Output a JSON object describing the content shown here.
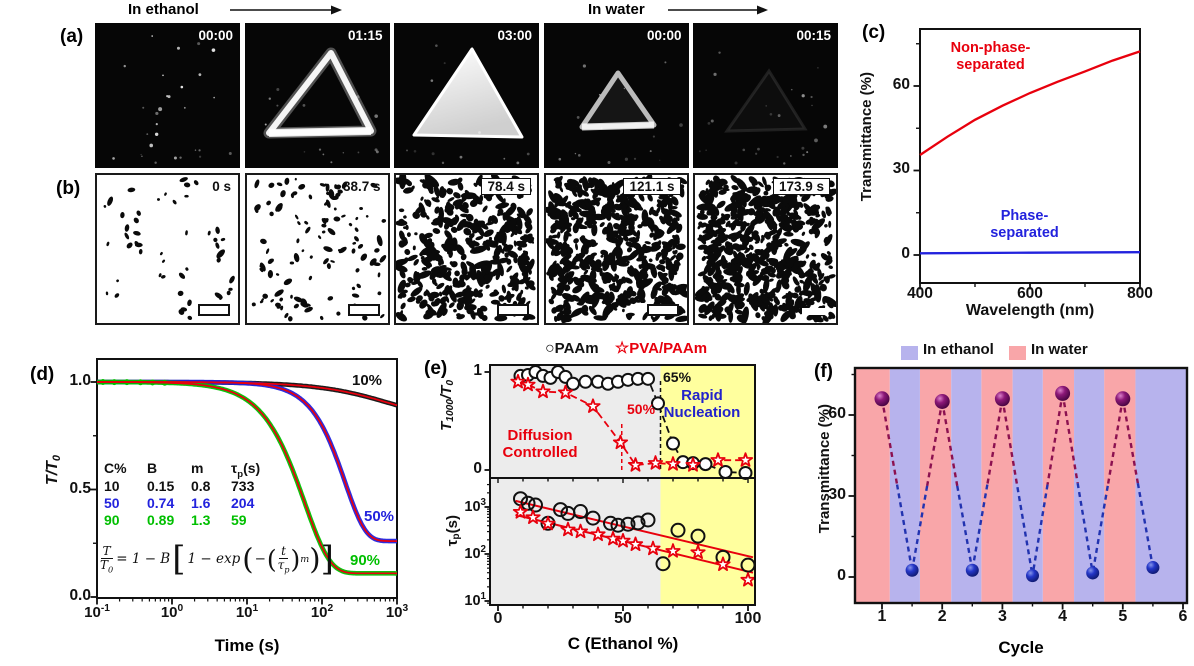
{
  "figure": {
    "top_arrows": [
      {
        "label": "In ethanol"
      },
      {
        "label": "In water"
      }
    ],
    "panel_labels": {
      "a": "(a)",
      "b": "(b)",
      "c": "(c)",
      "d": "(d)",
      "e": "(e)",
      "f": "(f)"
    }
  },
  "panel_a": {
    "frames": [
      {
        "timestamp": "00:00",
        "content": "sparse-dots"
      },
      {
        "timestamp": "01:15",
        "content": "triangle-outline"
      },
      {
        "timestamp": "03:00",
        "content": "triangle-filled"
      },
      {
        "timestamp": "00:00",
        "content": "triangle-outline-dim"
      },
      {
        "timestamp": "00:15",
        "content": "faint-dots"
      }
    ]
  },
  "panel_b": {
    "frames": [
      {
        "timestamp": "0 s",
        "dot_count": 48,
        "boxed_label": false
      },
      {
        "timestamp": "38.7 s",
        "dot_count": 115,
        "boxed_label": false
      },
      {
        "timestamp": "78.4 s",
        "dot_count": 400,
        "boxed_label": true
      },
      {
        "timestamp": "121.1 s",
        "dot_count": 540,
        "boxed_label": true
      },
      {
        "timestamp": "173.9 s",
        "dot_count": 580,
        "boxed_label": true
      }
    ]
  },
  "panel_c": {
    "ylabel": "Transmittance (%)",
    "xlabel": "Wavelength (nm)",
    "yticks": [
      "0",
      "30",
      "60"
    ],
    "xticks": [
      "400",
      "600",
      "800"
    ],
    "red_label_lines": [
      "Non-phase-",
      "separated"
    ],
    "blue_label_lines": [
      "Phase-",
      "separated"
    ]
  },
  "panel_d": {
    "ylabel": "T/T_{0}",
    "xlabel": "Time (s)",
    "yticks": [
      "0.0",
      "0.5",
      "1.0"
    ],
    "xticks": [
      "10^{-1}",
      "10^{0}",
      "10^{1}",
      "10^{2}",
      "10^{3}"
    ],
    "series_labels": [
      {
        "text": "10%",
        "color": "#111111"
      },
      {
        "text": "50%",
        "color": "#2222dd"
      },
      {
        "text": "90%",
        "color": "#00bf00"
      }
    ],
    "table": {
      "headers": [
        "C%",
        "B",
        "m",
        "τ_{p}(s)"
      ],
      "rows": [
        {
          "cells": [
            "10",
            "0.15",
            "0.8",
            "733"
          ],
          "color": "#111111"
        },
        {
          "cells": [
            "50",
            "0.74",
            "1.6",
            "204"
          ],
          "color": "#2222dd"
        },
        {
          "cells": [
            "90",
            "0.89",
            "1.3",
            "59"
          ],
          "color": "#00bf00"
        }
      ]
    },
    "equation": {
      "lhs_num": "T",
      "lhs_den": "T_{0}",
      "rhs_pre": "= 1 − B",
      "lb": "[",
      "inner_pre": "1 − exp",
      "lp": "(",
      "minus": "−",
      "ip": "(",
      "frac_num": "t",
      "frac_den": "τ_{p}",
      "cp": ")",
      "exponent": "m",
      "rp": ")",
      "rb": "]"
    }
  },
  "panel_e": {
    "legend": [
      {
        "glyph": "○",
        "text": "PAAm",
        "color": "#111111"
      },
      {
        "glyph": "☆",
        "text": "PVA/PAAm",
        "color": "#e8000d"
      }
    ],
    "top": {
      "ylabel": "T_{1000}/T_{0}",
      "yticks": [
        "0",
        "1"
      ],
      "annotations": {
        "line65": "65%",
        "line50": "50%",
        "diffusion": [
          "Diffusion",
          "Controlled"
        ],
        "rapid": [
          "Rapid",
          "Nucleation"
        ]
      }
    },
    "bottom": {
      "ylabel": "τ_{p}(s)",
      "yticks": [
        "10^{1}",
        "10^{2}",
        "10^{3}"
      ]
    },
    "xlabel": "C (Ethanol %)",
    "xticks": [
      "0",
      "50",
      "100"
    ]
  },
  "panel_f": {
    "legend": [
      {
        "text": "In ethanol",
        "color": "#b7b3ed"
      },
      {
        "text": "In water",
        "color": "#f9a6a9"
      }
    ],
    "ylabel": "Transmittance (%)",
    "xlabel": "Cycle",
    "yticks": [
      "0",
      "30",
      "60"
    ],
    "xticks": [
      "1",
      "2",
      "3",
      "4",
      "5",
      "6"
    ]
  },
  "colors": {
    "red": "#e8000d",
    "blue": "#2222dd",
    "green": "#00bf00",
    "black": "#111111",
    "gray_region": "#ececec",
    "yellow_region": "#ffff9e",
    "pink_band": "#f9a6a9",
    "lavender_band": "#b7b3ed",
    "maroon_sphere": "#6b0f5e",
    "navy_sphere": "#2233b0"
  },
  "chart_data": [
    {
      "id": "c",
      "type": "line",
      "xlabel": "Wavelength (nm)",
      "ylabel": "Transmittance (%)",
      "xlim": [
        400,
        800
      ],
      "ylim": [
        -8,
        78
      ],
      "xticks": [
        400,
        600,
        800
      ],
      "yticks": [
        0,
        30,
        60
      ],
      "series": [
        {
          "name": "Non-phase-separated",
          "color": "#e8000d",
          "x": [
            400,
            450,
            500,
            550,
            600,
            650,
            700,
            750,
            800
          ],
          "y": [
            35.5,
            42,
            48,
            53,
            57.5,
            61.5,
            65.2,
            69,
            72.3
          ]
        },
        {
          "name": "Phase-separated",
          "color": "#2222dd",
          "x": [
            400,
            600,
            800
          ],
          "y": [
            0.6,
            0.8,
            1.0
          ]
        }
      ]
    },
    {
      "id": "d",
      "type": "line",
      "xscale": "log",
      "xlabel": "Time (s)",
      "ylabel": "T/T0",
      "xlim": [
        0.1,
        1000
      ],
      "ylim": [
        0.0,
        1.05
      ],
      "model": "T/T0 = 1 - B*[1 - exp(-(t/tau_p)^m)]",
      "series": [
        {
          "name": "10%",
          "color": "#111111",
          "B": 0.15,
          "m": 0.8,
          "tau_p": 733
        },
        {
          "name": "50%",
          "color": "#2222dd",
          "B": 0.74,
          "m": 1.6,
          "tau_p": 204
        },
        {
          "name": "90%",
          "color": "#00bf00",
          "B": 0.89,
          "m": 1.3,
          "tau_p": 59
        }
      ]
    },
    {
      "id": "e-top",
      "type": "scatter",
      "xlabel": "C (Ethanol %)",
      "ylabel": "T1000/T0",
      "xlim": [
        -3,
        103
      ],
      "ylim": [
        -0.08,
        1.07
      ],
      "xticks": [
        0,
        50,
        100
      ],
      "yticks": [
        0,
        1
      ],
      "regions": [
        {
          "label": "Diffusion Controlled",
          "x": [
            -3,
            65
          ],
          "color": "#ececec"
        },
        {
          "label": "Rapid Nucleation",
          "x": [
            65,
            103
          ],
          "color": "#ffff9e"
        }
      ],
      "vlines": [
        {
          "x": 49.5,
          "label": "50%",
          "color": "#e8000d"
        },
        {
          "x": 65,
          "label": "65%",
          "color": "#111111"
        }
      ],
      "series": [
        {
          "name": "PAAm",
          "marker": "circle",
          "color": "#111111",
          "x": [
            9,
            12,
            15,
            18,
            21,
            24,
            27,
            30,
            35,
            40,
            44,
            48,
            52,
            56,
            60,
            64,
            70,
            74,
            78,
            83,
            91,
            99
          ],
          "y": [
            0.96,
            0.97,
            1.0,
            0.96,
            0.94,
            1.0,
            0.95,
            0.88,
            0.9,
            0.9,
            0.88,
            0.9,
            0.92,
            0.93,
            0.93,
            0.68,
            0.27,
            0.08,
            0.07,
            0.06,
            -0.02,
            -0.03
          ]
        },
        {
          "name": "PVA/PAAm",
          "marker": "star",
          "color": "#e8000d",
          "x": [
            8,
            12,
            18,
            27,
            38,
            49,
            55,
            63,
            70,
            78,
            88,
            99
          ],
          "y": [
            0.9,
            0.87,
            0.8,
            0.79,
            0.65,
            0.28,
            0.05,
            0.07,
            0.06,
            0.05,
            0.1,
            0.1
          ]
        }
      ]
    },
    {
      "id": "e-bottom",
      "type": "scatter",
      "yscale": "log",
      "xlabel": "C (Ethanol %)",
      "ylabel": "tau_p (s)",
      "xlim": [
        -3,
        103
      ],
      "ylim": [
        8,
        4200
      ],
      "xticks": [
        0,
        50,
        100
      ],
      "yticks": [
        10,
        100,
        1000
      ],
      "series": [
        {
          "name": "PAAm",
          "marker": "circle",
          "color": "#111111",
          "x": [
            9,
            12,
            15,
            20,
            25,
            28,
            33,
            38,
            45,
            48,
            52,
            56,
            60,
            66,
            72,
            80,
            90,
            100
          ],
          "y": [
            1500,
            1200,
            1100,
            450,
            880,
            730,
            800,
            580,
            450,
            410,
            430,
            460,
            530,
            62,
            320,
            240,
            85,
            58
          ]
        },
        {
          "name": "PVA/PAAm",
          "marker": "star",
          "color": "#e8000d",
          "x": [
            9,
            14,
            20,
            28,
            33,
            40,
            46,
            50,
            55,
            62,
            70,
            80,
            90,
            100
          ],
          "y": [
            780,
            600,
            440,
            330,
            300,
            260,
            210,
            190,
            160,
            130,
            115,
            108,
            60,
            28
          ]
        }
      ],
      "fit_lines": [
        {
          "name": "PAAm fit",
          "color": "#e8000d",
          "x": [
            7,
            102
          ],
          "y": [
            1350,
            85
          ]
        },
        {
          "name": "PVA/PAAm fit",
          "color": "#e8000d",
          "x": [
            7,
            102
          ],
          "y": [
            680,
            40
          ]
        }
      ]
    },
    {
      "id": "f",
      "type": "scatter",
      "xlabel": "Cycle",
      "ylabel": "Transmittance (%)",
      "xlim": [
        0.55,
        6.07
      ],
      "ylim": [
        -9,
        77
      ],
      "xticks": [
        1,
        2,
        3,
        4,
        5,
        6
      ],
      "yticks": [
        0,
        30,
        60
      ],
      "bands": {
        "in_water_pink": [
          [
            0.55,
            1.13
          ],
          [
            1.63,
            2.15
          ],
          [
            2.65,
            3.17
          ],
          [
            3.67,
            4.19
          ],
          [
            4.69,
            5.21
          ]
        ],
        "in_ethanol_blue": [
          [
            1.13,
            1.63
          ],
          [
            2.15,
            2.65
          ],
          [
            3.17,
            3.67
          ],
          [
            4.19,
            4.69
          ],
          [
            5.21,
            6.07
          ]
        ]
      },
      "series": [
        {
          "name": "in water (high T)",
          "color": "#6b0f5e",
          "x": [
            1,
            2,
            3,
            4,
            5
          ],
          "y": [
            66,
            65,
            66,
            68,
            66
          ]
        },
        {
          "name": "in ethanol (low T)",
          "color": "#2233b0",
          "x": [
            1.5,
            2.5,
            3.5,
            4.5,
            5.5
          ],
          "y": [
            2.5,
            2.5,
            0.5,
            1.5,
            3.5
          ]
        }
      ]
    }
  ]
}
